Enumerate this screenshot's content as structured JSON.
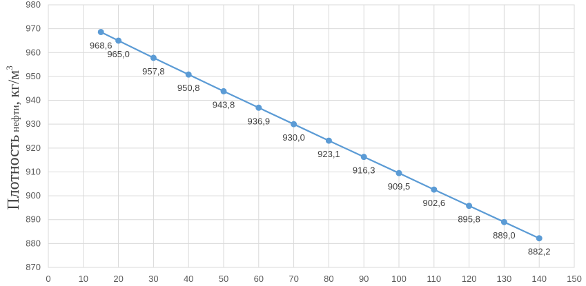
{
  "chart_data": {
    "type": "line",
    "title": "",
    "xlabel": "",
    "ylabel": {
      "main": "Плотность",
      "sub": "нефти",
      "unit": ", кг/м",
      "unit_sup": "3"
    },
    "xlim": [
      0,
      150
    ],
    "ylim": [
      870,
      980
    ],
    "xticks": [
      0,
      10,
      20,
      30,
      40,
      50,
      60,
      70,
      80,
      90,
      100,
      110,
      120,
      130,
      140,
      150
    ],
    "yticks": [
      870,
      880,
      890,
      900,
      910,
      920,
      930,
      940,
      950,
      960,
      970,
      980
    ],
    "grid": true,
    "legend": "none",
    "line_color": "#5B9BD5",
    "grid_color": "#D9D9D9",
    "series": [
      {
        "x": [
          15,
          20,
          30,
          40,
          50,
          60,
          70,
          80,
          90,
          100,
          110,
          120,
          130,
          140
        ],
        "values": [
          968.6,
          965.0,
          957.8,
          950.8,
          943.8,
          936.9,
          930.0,
          923.1,
          916.3,
          909.5,
          902.6,
          895.8,
          889.0,
          882.2
        ],
        "labels": [
          "968,6",
          "965,0",
          "957,8",
          "950,8",
          "943,8",
          "936,9",
          "930,0",
          "923,1",
          "916,3",
          "909,5",
          "902,6",
          "895,8",
          "889,0",
          "882,2"
        ]
      }
    ]
  }
}
